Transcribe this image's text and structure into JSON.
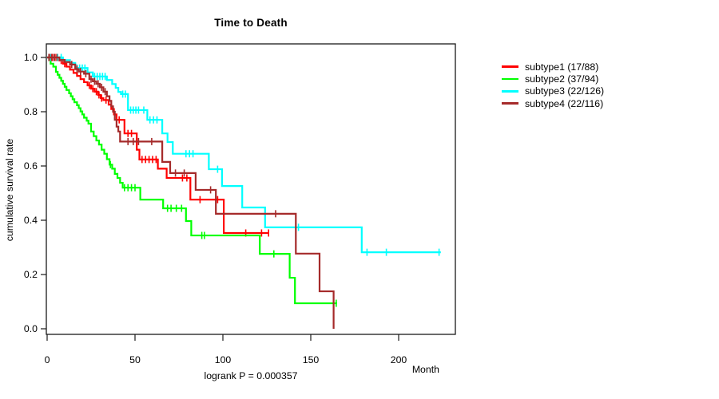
{
  "title": "Time to Death",
  "chart_data": {
    "type": "line",
    "subtype": "kaplan-meier-step",
    "title": "Time to Death",
    "xlabel": "Month",
    "ylabel": "cumulative survival rate",
    "annotation": "logrank P = 0.000357",
    "x_ticks": [
      0,
      50,
      100,
      150,
      200
    ],
    "y_ticks": [
      0.0,
      0.2,
      0.4,
      0.6,
      0.8,
      1.0
    ],
    "xlim": [
      0,
      232
    ],
    "ylim": [
      0.0,
      1.05
    ],
    "grid": false,
    "legend_position": "right-outside",
    "series": [
      {
        "name": "subtype1",
        "label": "subtype1 (17/88)",
        "color": "#FF0000",
        "start": [
          0,
          1.0
        ],
        "steps": [
          [
            7,
            0.989
          ],
          [
            9,
            0.977
          ],
          [
            11,
            0.966
          ],
          [
            13,
            0.955
          ],
          [
            15,
            0.943
          ],
          [
            17,
            0.932
          ],
          [
            19,
            0.92
          ],
          [
            21,
            0.909
          ],
          [
            23,
            0.897
          ],
          [
            25,
            0.885
          ],
          [
            27,
            0.874
          ],
          [
            29,
            0.862
          ],
          [
            30.5,
            0.85
          ],
          [
            32,
            0.843
          ],
          [
            35,
            0.826
          ],
          [
            36.5,
            0.81
          ],
          [
            38,
            0.79
          ],
          [
            39.5,
            0.77
          ],
          [
            44,
            0.72
          ],
          [
            51,
            0.66
          ],
          [
            52.5,
            0.624
          ],
          [
            63,
            0.59
          ],
          [
            68,
            0.556
          ],
          [
            81.5,
            0.476
          ],
          [
            100.5,
            0.353
          ]
        ],
        "end_time": 126,
        "censors": [
          [
            1.5,
            1
          ],
          [
            3,
            1
          ],
          [
            4.5,
            1
          ],
          [
            8,
            0.989
          ],
          [
            10,
            0.977
          ],
          [
            24,
            0.897
          ],
          [
            26,
            0.885
          ],
          [
            28,
            0.874
          ],
          [
            29.5,
            0.862
          ],
          [
            31,
            0.85
          ],
          [
            33.5,
            0.843
          ],
          [
            41,
            0.77
          ],
          [
            46,
            0.72
          ],
          [
            48,
            0.72
          ],
          [
            54,
            0.624
          ],
          [
            56,
            0.624
          ],
          [
            58,
            0.624
          ],
          [
            60,
            0.624
          ],
          [
            62,
            0.624
          ],
          [
            77,
            0.556
          ],
          [
            79.5,
            0.556
          ],
          [
            87,
            0.476
          ],
          [
            97,
            0.476
          ],
          [
            113,
            0.353
          ],
          [
            122,
            0.353
          ],
          [
            126,
            0.353
          ]
        ]
      },
      {
        "name": "subtype2",
        "label": "subtype2 (37/94)",
        "color": "#00FF00",
        "start": [
          0,
          1.0
        ],
        "steps": [
          [
            2,
            0.977
          ],
          [
            3.5,
            0.966
          ],
          [
            5,
            0.947
          ],
          [
            6,
            0.936
          ],
          [
            7,
            0.925
          ],
          [
            8,
            0.914
          ],
          [
            9,
            0.903
          ],
          [
            10,
            0.892
          ],
          [
            11,
            0.88
          ],
          [
            12.5,
            0.868
          ],
          [
            13.5,
            0.857
          ],
          [
            14.5,
            0.846
          ],
          [
            15.5,
            0.835
          ],
          [
            17,
            0.824
          ],
          [
            18,
            0.813
          ],
          [
            19,
            0.801
          ],
          [
            20,
            0.79
          ],
          [
            21,
            0.778
          ],
          [
            22.5,
            0.767
          ],
          [
            23.5,
            0.756
          ],
          [
            25,
            0.727
          ],
          [
            26.5,
            0.71
          ],
          [
            28,
            0.694
          ],
          [
            29.5,
            0.679
          ],
          [
            31,
            0.66
          ],
          [
            32.5,
            0.645
          ],
          [
            34,
            0.625
          ],
          [
            35.5,
            0.605
          ],
          [
            37,
            0.59
          ],
          [
            38.5,
            0.571
          ],
          [
            40,
            0.556
          ],
          [
            41.5,
            0.538
          ],
          [
            43,
            0.52
          ],
          [
            53,
            0.476
          ],
          [
            66,
            0.444
          ],
          [
            79,
            0.397
          ],
          [
            82,
            0.344
          ],
          [
            121,
            0.276
          ],
          [
            138,
            0.188
          ],
          [
            141,
            0.094
          ]
        ],
        "end_time": 165,
        "censors": [
          [
            36,
            0.605
          ],
          [
            44,
            0.52
          ],
          [
            46,
            0.52
          ],
          [
            48,
            0.52
          ],
          [
            50,
            0.52
          ],
          [
            68.5,
            0.444
          ],
          [
            70.5,
            0.444
          ],
          [
            73.5,
            0.444
          ],
          [
            76.5,
            0.444
          ],
          [
            88,
            0.344
          ],
          [
            89.5,
            0.344
          ],
          [
            129,
            0.276
          ],
          [
            164.5,
            0.094
          ]
        ]
      },
      {
        "name": "subtype3",
        "label": "subtype3 (22/126)",
        "color": "#00FFFF",
        "start": [
          0,
          1.0
        ],
        "steps": [
          [
            9,
            0.99
          ],
          [
            13,
            0.98
          ],
          [
            16,
            0.961
          ],
          [
            23,
            0.945
          ],
          [
            26,
            0.93
          ],
          [
            34,
            0.917
          ],
          [
            37,
            0.902
          ],
          [
            39,
            0.888
          ],
          [
            40.5,
            0.873
          ],
          [
            42,
            0.865
          ],
          [
            46,
            0.806
          ],
          [
            57,
            0.77
          ],
          [
            65.5,
            0.72
          ],
          [
            68.5,
            0.688
          ],
          [
            71.5,
            0.645
          ],
          [
            92,
            0.588
          ],
          [
            99.5,
            0.526
          ],
          [
            111,
            0.447
          ],
          [
            124,
            0.374
          ],
          [
            179,
            0.282
          ]
        ],
        "end_time": 224,
        "censors": [
          [
            2,
            1
          ],
          [
            4,
            1
          ],
          [
            6,
            1
          ],
          [
            8,
            1
          ],
          [
            17,
            0.961
          ],
          [
            18.5,
            0.961
          ],
          [
            20,
            0.961
          ],
          [
            21.5,
            0.961
          ],
          [
            27,
            0.93
          ],
          [
            28.5,
            0.93
          ],
          [
            30,
            0.93
          ],
          [
            31.5,
            0.93
          ],
          [
            33,
            0.93
          ],
          [
            43,
            0.865
          ],
          [
            44.5,
            0.865
          ],
          [
            47.5,
            0.806
          ],
          [
            49,
            0.806
          ],
          [
            50.5,
            0.806
          ],
          [
            52,
            0.806
          ],
          [
            55,
            0.806
          ],
          [
            58.5,
            0.77
          ],
          [
            60.5,
            0.77
          ],
          [
            62.5,
            0.77
          ],
          [
            79,
            0.645
          ],
          [
            81,
            0.645
          ],
          [
            83,
            0.645
          ],
          [
            97,
            0.588
          ],
          [
            143,
            0.374
          ],
          [
            182,
            0.282
          ],
          [
            193,
            0.282
          ],
          [
            223,
            0.282
          ]
        ]
      },
      {
        "name": "subtype4",
        "label": "subtype4 (22/116)",
        "color": "#A52A2A",
        "start": [
          0,
          1.0
        ],
        "steps": [
          [
            7,
            0.991
          ],
          [
            10,
            0.983
          ],
          [
            13,
            0.974
          ],
          [
            16,
            0.957
          ],
          [
            18,
            0.948
          ],
          [
            21,
            0.94
          ],
          [
            24,
            0.92
          ],
          [
            26,
            0.912
          ],
          [
            28,
            0.903
          ],
          [
            30,
            0.89
          ],
          [
            32,
            0.874
          ],
          [
            34,
            0.857
          ],
          [
            35.5,
            0.84
          ],
          [
            36.5,
            0.82
          ],
          [
            37.5,
            0.8
          ],
          [
            38.5,
            0.77
          ],
          [
            39.5,
            0.745
          ],
          [
            40.5,
            0.727
          ],
          [
            41.5,
            0.69
          ],
          [
            65.5,
            0.615
          ],
          [
            70,
            0.574
          ],
          [
            84.5,
            0.512
          ],
          [
            96,
            0.424
          ],
          [
            141.5,
            0.277
          ],
          [
            155,
            0.138
          ],
          [
            163,
            0.0
          ]
        ],
        "end_time": 163,
        "censors": [
          [
            1,
            1
          ],
          [
            2.5,
            1
          ],
          [
            4,
            1
          ],
          [
            5.5,
            1
          ],
          [
            14,
            0.974
          ],
          [
            17,
            0.957
          ],
          [
            19,
            0.948
          ],
          [
            22,
            0.94
          ],
          [
            25,
            0.92
          ],
          [
            27,
            0.912
          ],
          [
            29,
            0.903
          ],
          [
            31,
            0.89
          ],
          [
            33,
            0.874
          ],
          [
            46,
            0.69
          ],
          [
            49,
            0.69
          ],
          [
            52,
            0.69
          ],
          [
            59.5,
            0.69
          ],
          [
            73,
            0.574
          ],
          [
            78,
            0.574
          ],
          [
            93,
            0.512
          ],
          [
            130,
            0.424
          ]
        ]
      }
    ]
  }
}
